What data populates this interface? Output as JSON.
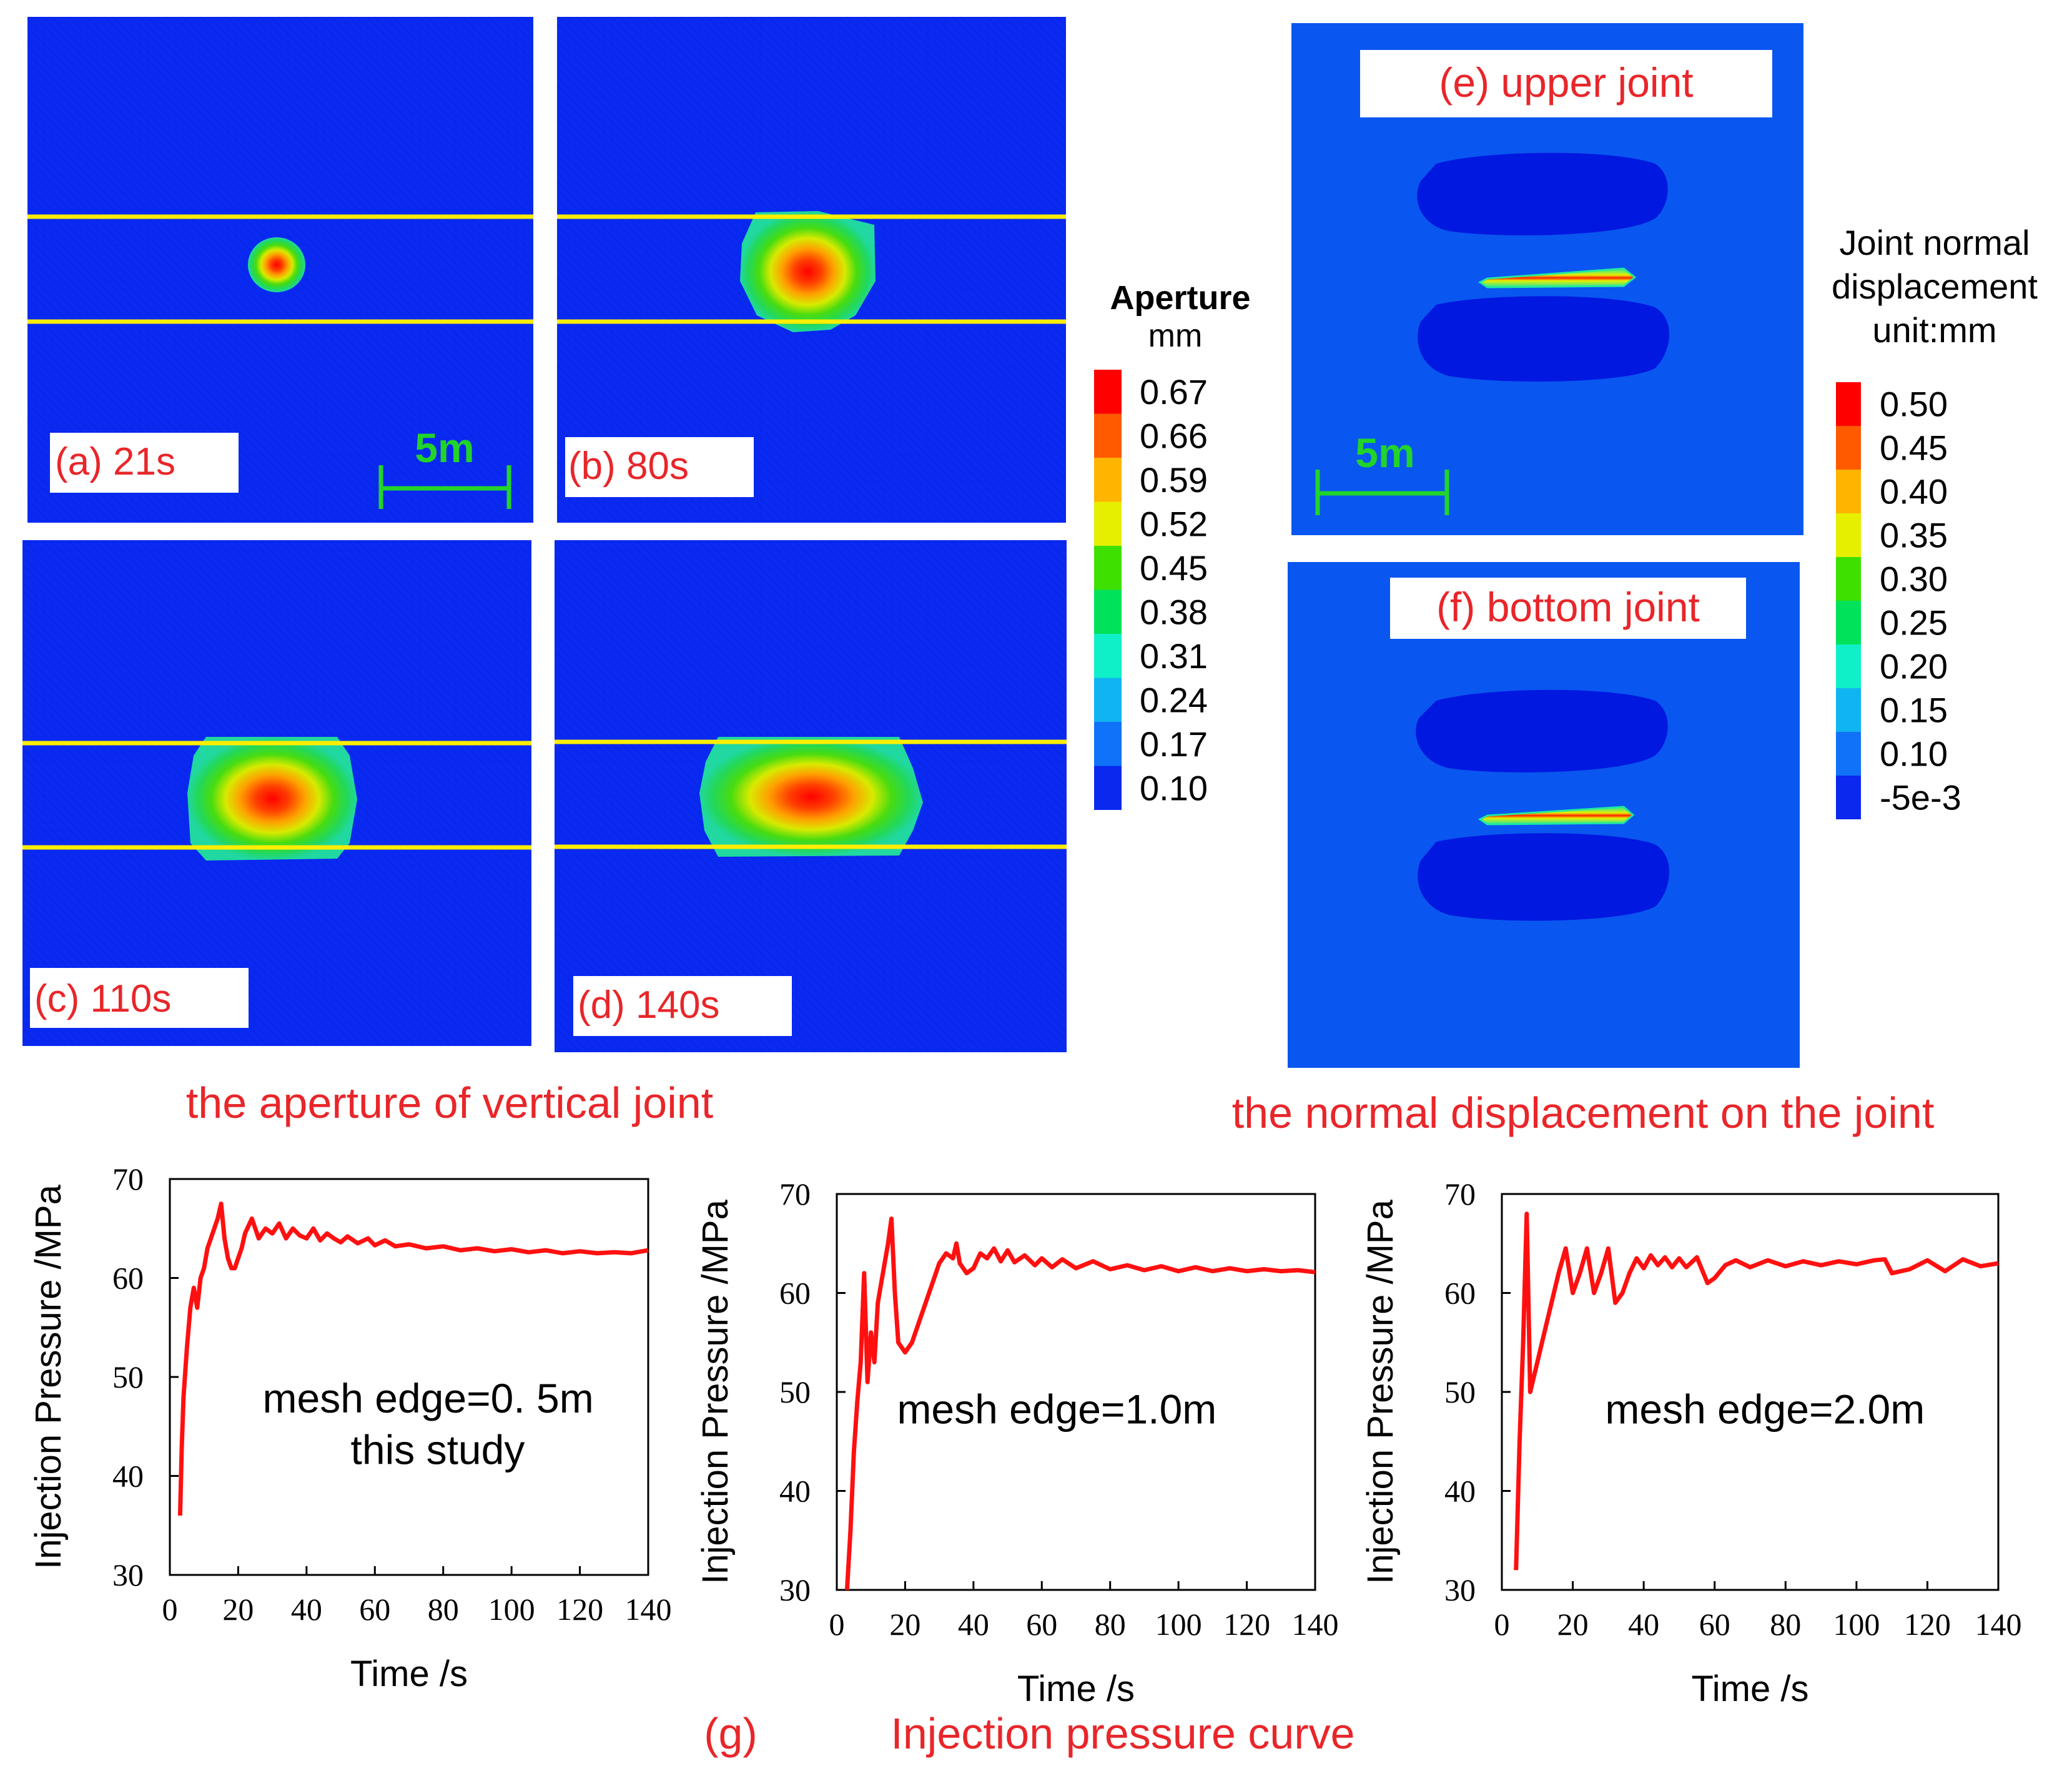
{
  "colors": {
    "background_field": "#0a2af2",
    "blob_field": "#0018e0",
    "scale_bar": "#22d42a",
    "joint_line": "#ffee00",
    "label_text": "#e8262a",
    "curve": "#ff1010",
    "axis": "#000000"
  },
  "aperture_panels": [
    {
      "label": "(a) 21s",
      "time_s": 21
    },
    {
      "label": "(b) 80s",
      "time_s": 80
    },
    {
      "label": "(c) 110s",
      "time_s": 110
    },
    {
      "label": "(d) 140s",
      "time_s": 140
    }
  ],
  "scale_bar_label": "5m",
  "aperture_legend": {
    "title": "Aperture",
    "unit": "mm",
    "levels": [
      "0.67",
      "0.66",
      "0.59",
      "0.52",
      "0.45",
      "0.38",
      "0.31",
      "0.24",
      "0.17",
      "0.10"
    ],
    "colors": [
      "#ff0000",
      "#ff5a00",
      "#ffb400",
      "#e6ef00",
      "#3ee000",
      "#00e25a",
      "#10f0c8",
      "#10b4f0",
      "#1072f8",
      "#0a28ee"
    ]
  },
  "displacement_panels": [
    {
      "label": "(e) upper joint"
    },
    {
      "label": "(f) bottom joint"
    }
  ],
  "displacement_legend": {
    "title_lines": [
      "Joint normal",
      "displacement",
      "unit:mm"
    ],
    "levels": [
      "0.50",
      "0.45",
      "0.40",
      "0.35",
      "0.30",
      "0.25",
      "0.20",
      "0.15",
      "0.10",
      "-5e-3"
    ],
    "colors": [
      "#ff0000",
      "#ff5a00",
      "#ffb400",
      "#e6ef00",
      "#3ee000",
      "#00e25a",
      "#10f0c8",
      "#10b4f0",
      "#1072f8",
      "#0a28ee"
    ]
  },
  "captions": {
    "aperture": "the aperture of vertical joint",
    "displacement": "the normal displacement on the joint",
    "g_label": "(g)",
    "g_title": "Injection pressure curve"
  },
  "chart_data": [
    {
      "type": "line",
      "title": "",
      "annotation": [
        "mesh  edge=0. 5m",
        "this study"
      ],
      "xlabel": "Time /s",
      "ylabel": "Injection Pressure /MPa",
      "xlim": [
        0,
        140
      ],
      "ylim": [
        30,
        70
      ],
      "xticks": [
        "0",
        "20",
        "40",
        "60",
        "80",
        "100",
        "120",
        "140"
      ],
      "yticks": [
        "30",
        "40",
        "50",
        "60",
        "70"
      ],
      "series": [
        {
          "name": "mesh edge=0.5m",
          "x": [
            3,
            3.5,
            4,
            5,
            6,
            7,
            8,
            9,
            10,
            11,
            12,
            13,
            14,
            15,
            16,
            17,
            18,
            19,
            20,
            21,
            22,
            24,
            26,
            28,
            30,
            32,
            34,
            36,
            38,
            40,
            42,
            44,
            46,
            48,
            50,
            52,
            55,
            58,
            60,
            63,
            66,
            70,
            75,
            80,
            85,
            90,
            95,
            100,
            105,
            110,
            115,
            120,
            125,
            130,
            135,
            140
          ],
          "y": [
            36,
            43,
            48,
            53,
            57,
            59,
            57,
            60,
            61,
            63,
            64,
            65,
            66,
            67.5,
            64,
            62,
            61,
            61,
            62,
            63,
            64.5,
            66,
            64,
            65,
            64.5,
            65.5,
            64,
            65,
            64.3,
            64,
            65,
            63.8,
            64.5,
            64,
            63.6,
            64.2,
            63.5,
            64,
            63.3,
            63.8,
            63.2,
            63.4,
            63,
            63.2,
            62.8,
            63,
            62.7,
            62.9,
            62.6,
            62.8,
            62.5,
            62.7,
            62.5,
            62.6,
            62.5,
            62.8
          ]
        }
      ]
    },
    {
      "type": "line",
      "title": "",
      "annotation": [
        "mesh  edge=1.0m"
      ],
      "xlabel": "Time /s",
      "ylabel": "Injection Pressure /MPa",
      "xlim": [
        0,
        140
      ],
      "ylim": [
        30,
        70
      ],
      "xticks": [
        "0",
        "20",
        "40",
        "60",
        "80",
        "100",
        "120",
        "140"
      ],
      "yticks": [
        "30",
        "40",
        "50",
        "60",
        "70"
      ],
      "series": [
        {
          "name": "mesh edge=1.0m",
          "x": [
            3,
            4,
            5,
            6,
            7,
            8,
            9,
            10,
            11,
            12,
            13,
            14,
            15,
            16,
            17,
            18,
            20,
            22,
            24,
            26,
            28,
            30,
            32,
            34,
            35,
            36,
            38,
            40,
            42,
            44,
            46,
            48,
            50,
            52,
            55,
            58,
            60,
            63,
            66,
            70,
            75,
            80,
            85,
            90,
            95,
            100,
            105,
            110,
            115,
            120,
            125,
            130,
            135,
            140
          ],
          "y": [
            30,
            36,
            44,
            49,
            53,
            62,
            51,
            56,
            53,
            59,
            61,
            63,
            65,
            67.5,
            60,
            55,
            54,
            55,
            57,
            59,
            61,
            63,
            64,
            63.5,
            65,
            63,
            62,
            62.5,
            64,
            63.5,
            64.5,
            63.2,
            64.3,
            63.1,
            63.8,
            62.8,
            63.5,
            62.6,
            63.4,
            62.5,
            63.2,
            62.4,
            62.8,
            62.3,
            62.7,
            62.2,
            62.6,
            62.2,
            62.5,
            62.2,
            62.4,
            62.2,
            62.3,
            62.1
          ]
        }
      ]
    },
    {
      "type": "line",
      "title": "",
      "annotation": [
        "mesh  edge=2.0m"
      ],
      "xlabel": "Time /s",
      "ylabel": "Injection Pressure /MPa",
      "xlim": [
        0,
        140
      ],
      "ylim": [
        30,
        70
      ],
      "xticks": [
        "0",
        "20",
        "40",
        "60",
        "80",
        "100",
        "120",
        "140"
      ],
      "yticks": [
        "30",
        "40",
        "50",
        "60",
        "70"
      ],
      "series": [
        {
          "name": "mesh edge=2.0m",
          "x": [
            4,
            5,
            6,
            7,
            8,
            10,
            12,
            14,
            16,
            18,
            20,
            22,
            24,
            26,
            28,
            30,
            32,
            34,
            36,
            38,
            40,
            42,
            44,
            46,
            48,
            50,
            52,
            55,
            58,
            60,
            63,
            66,
            70,
            75,
            80,
            85,
            90,
            95,
            100,
            105,
            108,
            110,
            115,
            120,
            125,
            130,
            135,
            140
          ],
          "y": [
            32,
            45,
            55,
            68,
            50,
            53,
            56,
            59,
            62,
            64.5,
            60,
            62,
            64.5,
            60,
            62,
            64.5,
            59,
            60,
            62,
            63.5,
            62.5,
            63.8,
            62.8,
            63.6,
            62.6,
            63.5,
            62.6,
            63.6,
            61,
            61.5,
            62.8,
            63.3,
            62.6,
            63.3,
            62.7,
            63.2,
            62.8,
            63.2,
            62.9,
            63.3,
            63.4,
            62,
            62.4,
            63.3,
            62.2,
            63.4,
            62.7,
            63.0
          ]
        }
      ]
    }
  ]
}
